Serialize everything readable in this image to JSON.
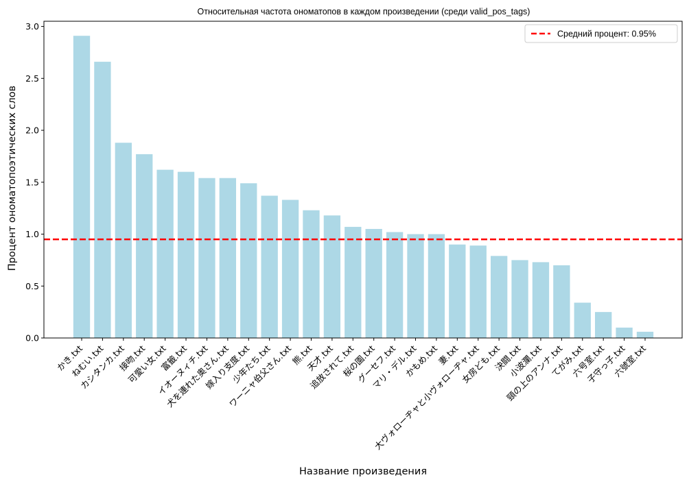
{
  "chart_data": {
    "type": "bar",
    "title": "Относительная частота ономатопов в каждом произведении (среди valid_pos_tags)",
    "xlabel": "Название произведения",
    "ylabel": "Процент ономатопоэтических слов",
    "categories": [
      "かき.txt",
      "ねむい.txt",
      "カシタンカ.txt",
      "接吻.txt",
      "可愛い女.txt",
      "富籤.txt",
      "イオーヌィチ.txt",
      "犬を連れた奥さん.txt",
      "嫁入り支度.txt",
      "少年たち.txt",
      "ワーニャ伯父さん.txt",
      "熊.txt",
      "天才.txt",
      "追放されて.txt",
      "桜の園.txt",
      "グーセフ.txt",
      "マリ・デル.txt",
      "かもめ.txt",
      "妻.txt",
      "大ヴォローヂャと小ヴォローヂャ.txt",
      "女房ども.txt",
      "決闘.txt",
      "小波瀾.txt",
      "頸の上のアンナ.txt",
      "てがみ.txt",
      "六号室.txt",
      "子守っ子.txt",
      "六號室.txt"
    ],
    "values": [
      2.91,
      2.66,
      1.88,
      1.77,
      1.62,
      1.6,
      1.54,
      1.54,
      1.49,
      1.37,
      1.33,
      1.23,
      1.18,
      1.07,
      1.05,
      1.02,
      1.0,
      1.0,
      0.9,
      0.89,
      0.79,
      0.75,
      0.73,
      0.7,
      0.34,
      0.25,
      0.1,
      0.06
    ],
    "bar_color": "#add8e6",
    "ylim": [
      0,
      3.05
    ],
    "yticks": [
      "0.0",
      "0.5",
      "1.0",
      "1.5",
      "2.0",
      "2.5",
      "3.0"
    ],
    "mean_line": {
      "value": 0.95,
      "color": "#ff0000",
      "style": "dashed"
    },
    "legend": {
      "label": "Средний процент: 0.95%",
      "placement": "top-right"
    },
    "grid": false
  }
}
